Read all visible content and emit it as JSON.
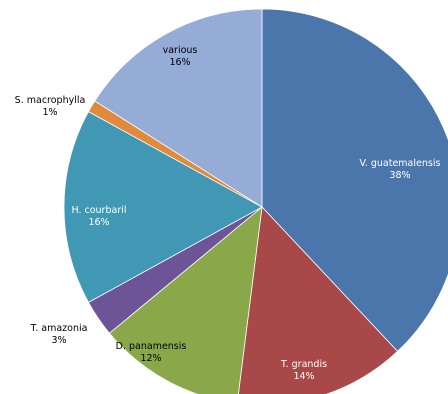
{
  "chart_data": {
    "type": "pie",
    "start_angle_deg": 0,
    "direction": "clockwise",
    "slices": [
      {
        "label": "V. guatemalensis",
        "value": 38,
        "percent_label": "38%",
        "color": "#4a76ac",
        "label_color": "#ffffff"
      },
      {
        "label": "T. grandis",
        "value": 14,
        "percent_label": "14%",
        "color": "#a84848",
        "label_color": "#ffffff"
      },
      {
        "label": "D. panamensis",
        "value": 12,
        "percent_label": "12%",
        "color": "#8aa84a",
        "label_color": "#000000"
      },
      {
        "label": "T. amazonia",
        "value": 3,
        "percent_label": "3%",
        "color": "#6c5496",
        "label_color": "#000000"
      },
      {
        "label": "H. courbaril",
        "value": 16,
        "percent_label": "16%",
        "color": "#4098b4",
        "label_color": "#ffffff"
      },
      {
        "label": "S. macrophylla",
        "value": 1,
        "percent_label": "1%",
        "color": "#e08a3e",
        "label_color": "#000000"
      },
      {
        "label": "various",
        "value": 16,
        "percent_label": "16%",
        "color": "#94acd6",
        "label_color": "#000000"
      }
    ]
  }
}
